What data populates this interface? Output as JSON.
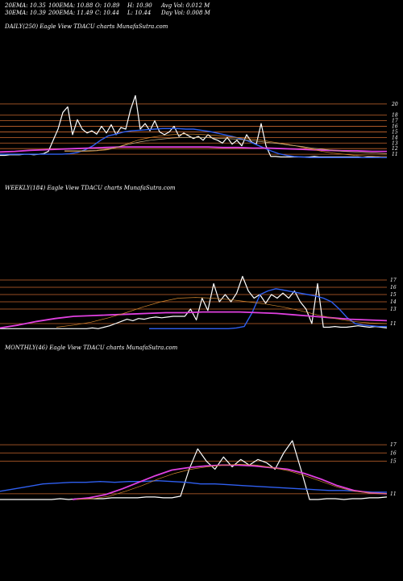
{
  "stats": {
    "ema20": "20EMA: 10.35",
    "ema100": "100EMA: 10.88",
    "open": "O: 10.89",
    "high": "H: 10.90",
    "avg_vol": "Avg Vol: 0.012  M",
    "ema30": "30EMA: 10.39",
    "ema200": "200EMA: 11.49",
    "close": "C: 10.44",
    "low": "L: 10.44",
    "day_vol": "Day Vol: 0.008  M"
  },
  "panels": {
    "daily_title": "DAILY(250) Eagle   View  TDACU charts MunafaSutra.com",
    "weekly_title": "WEEKLY(184) Eagle   View  TDACU charts MunafaSutra.com",
    "monthly_title": "MONTHLY(46) Eagle   View  TDACU charts MunafaSutra.com"
  },
  "colors": {
    "background": "#000000",
    "price": "#ffffff",
    "ema_blue": "#2f5ff0",
    "ema_magenta": "#e040e0",
    "grid": "#c8672e",
    "ma_orange": "#d4882f",
    "ma_tan": "#c8b48a"
  },
  "chart_data": [
    {
      "type": "line",
      "title": "DAILY(250)",
      "y_ticks": [
        "20",
        "18",
        "17",
        "16",
        "15",
        "14",
        "13",
        "12",
        "11"
      ],
      "ylim": [
        10,
        21
      ],
      "series": [
        {
          "values": [
            10.8,
            10.8,
            10.9,
            10.9,
            10.9,
            11.0,
            11.0,
            10.9,
            11.0,
            11.1,
            11.5,
            13.5,
            15.5,
            18.5,
            19.5,
            14.5,
            17.2,
            15.5,
            14.8,
            15.2,
            14.6,
            16.0,
            14.8,
            16.3,
            14.5,
            15.8,
            15.5,
            19.0,
            21.5,
            15.5,
            16.5,
            15.2,
            17.0,
            15.0,
            14.5,
            15.0,
            16.0,
            14.2,
            14.8,
            14.3,
            13.8,
            14.2,
            13.5,
            14.5,
            13.8,
            13.5,
            13.0,
            14.0,
            12.8,
            13.5,
            12.5,
            14.5,
            13.2,
            12.8,
            16.5,
            12.5,
            10.6,
            10.6,
            10.5,
            10.5,
            10.5,
            10.5,
            10.5,
            10.5,
            10.5,
            10.6,
            10.5,
            10.5,
            10.5,
            10.5,
            10.5,
            10.5,
            10.5,
            10.5,
            10.5,
            10.4,
            10.5,
            10.5,
            10.5,
            10.4,
            10.4
          ]
        },
        {
          "values": [
            11.0,
            11.0,
            11.0,
            11.0,
            11.0,
            11.0,
            11.0,
            11.0,
            11.0,
            11.1,
            11.3,
            11.8,
            12.5,
            13.5,
            14.3,
            14.6,
            15.0,
            15.2,
            15.3,
            15.4,
            15.5,
            15.6,
            15.6,
            15.6,
            15.5,
            15.5,
            15.3,
            15.1,
            14.8,
            14.5,
            14.2,
            13.8,
            13.4,
            12.8,
            12.2,
            11.6,
            11.1,
            10.8,
            10.6,
            10.5,
            10.4,
            10.4,
            10.4,
            10.4,
            10.4,
            10.4,
            10.4,
            10.4,
            10.4,
            10.4,
            10.4
          ]
        },
        {
          "values": [
            11.4,
            11.5,
            11.7,
            11.8,
            11.9,
            12.0,
            12.1,
            12.2,
            12.3,
            12.3,
            12.3,
            12.3,
            12.3,
            12.3,
            12.3,
            12.2,
            12.2,
            12.1,
            12.1,
            12.0,
            11.9,
            11.8,
            11.7,
            11.6,
            11.6,
            11.5,
            11.5
          ]
        },
        {
          "values": [
            11.5,
            11.5,
            11.5,
            11.6,
            11.8,
            12.3,
            13.0,
            13.6,
            14.0,
            14.3,
            14.5,
            14.6,
            14.6,
            14.5,
            14.4,
            14.2,
            14.0,
            13.8,
            13.6,
            13.3,
            13.0,
            12.7,
            12.3,
            11.9,
            11.5,
            11.2,
            11.0,
            10.8,
            10.7,
            10.6,
            10.6
          ]
        },
        {
          "values": [
            11.6,
            11.6,
            11.6,
            11.7,
            11.9,
            12.3,
            12.8,
            13.2,
            13.5,
            13.7,
            13.9,
            14.0,
            14.0,
            14.0,
            13.9,
            13.8,
            13.7,
            13.5,
            13.3,
            13.1,
            12.9,
            12.6,
            12.4,
            12.1,
            11.9,
            11.7,
            11.5,
            11.4,
            11.3,
            11.2,
            11.1
          ]
        }
      ]
    },
    {
      "type": "line",
      "title": "WEEKLY(184)",
      "y_ticks": [
        "17",
        "16",
        "15",
        "14",
        "13",
        "11"
      ],
      "ylim": [
        10,
        18
      ],
      "series": [
        {
          "values": [
            10.3,
            10.3,
            10.3,
            10.3,
            10.3,
            10.3,
            10.3,
            10.3,
            10.3,
            10.3,
            10.3,
            10.3,
            10.3,
            10.3,
            10.3,
            10.3,
            10.4,
            10.3,
            10.5,
            10.7,
            11.0,
            11.3,
            11.6,
            11.4,
            11.7,
            11.6,
            11.8,
            11.9,
            11.8,
            11.9,
            12.0,
            12.0,
            12.0,
            13.0,
            11.5,
            14.5,
            12.8,
            16.5,
            14.0,
            15.0,
            14.0,
            15.2,
            17.5,
            15.5,
            14.5,
            15.0,
            13.8,
            15.0,
            14.5,
            15.2,
            14.5,
            15.5,
            14.0,
            13.0,
            11.0,
            16.5,
            10.5,
            10.5,
            10.6,
            10.5,
            10.5,
            10.6,
            10.7,
            10.6,
            10.5,
            10.6,
            10.5,
            10.4
          ]
        },
        {
          "values": [
            10.3,
            10.3,
            10.3,
            10.3,
            10.3,
            10.3,
            10.3,
            10.3,
            10.3,
            10.3,
            10.3,
            10.4,
            10.6,
            12.5,
            15.0,
            15.5,
            15.8,
            15.6,
            15.4,
            15.2,
            15.0,
            14.8,
            14.5,
            14.0,
            13.0,
            11.8,
            11.0,
            10.8,
            10.7,
            10.6,
            10.6
          ]
        },
        {
          "values": [
            10.4,
            10.8,
            11.3,
            11.7,
            12.0,
            12.1,
            12.2,
            12.3,
            12.4,
            12.5,
            12.5,
            12.6,
            12.6,
            12.6,
            12.5,
            12.4,
            12.2,
            12.0,
            11.8,
            11.6,
            11.5,
            11.4
          ]
        },
        {
          "values": [
            10.5,
            10.8,
            11.2,
            11.8,
            12.5,
            13.3,
            14.0,
            14.5,
            14.6,
            14.5,
            14.3,
            14.0,
            13.7,
            13.3,
            12.8,
            12.2,
            11.7,
            11.3,
            11.1,
            11.0
          ]
        }
      ]
    },
    {
      "type": "line",
      "title": "MONTHLY(46)",
      "y_ticks": [
        "17",
        "16",
        "15",
        "11"
      ],
      "ylim": [
        10,
        18
      ],
      "series": [
        {
          "values": [
            10.3,
            10.3,
            10.3,
            10.3,
            10.3,
            10.3,
            10.3,
            10.4,
            10.3,
            10.4,
            10.4,
            10.4,
            10.4,
            10.5,
            10.5,
            10.5,
            10.5,
            10.6,
            10.6,
            10.5,
            10.5,
            10.7,
            14.0,
            16.5,
            15.0,
            14.0,
            15.5,
            14.3,
            15.2,
            14.5,
            15.2,
            14.8,
            14.0,
            16.0,
            17.5,
            14.0,
            10.3,
            10.3,
            10.4,
            10.4,
            10.3,
            10.4,
            10.4,
            10.5,
            10.5,
            10.6
          ]
        },
        {
          "values": [
            11.3,
            11.6,
            11.9,
            12.2,
            12.3,
            12.4,
            12.4,
            12.5,
            12.4,
            12.5,
            12.5,
            12.6,
            12.5,
            12.4,
            12.2,
            12.2,
            12.1,
            12.0,
            11.9,
            11.8,
            11.7,
            11.6,
            11.5,
            11.4,
            11.4,
            11.3,
            11.2,
            11.2
          ]
        },
        {
          "values": [
            10.3,
            10.5,
            10.9,
            11.6,
            12.4,
            13.2,
            13.9,
            14.2,
            14.4,
            14.5,
            14.5,
            14.4,
            14.2,
            14.0,
            13.5,
            12.8,
            12.0,
            11.4,
            11.1,
            11.0
          ]
        },
        {
          "values": [
            10.3,
            10.4,
            10.7,
            11.3,
            12.0,
            12.8,
            13.5,
            14.0,
            14.3,
            14.5,
            14.6,
            14.5,
            14.2,
            13.8,
            13.2,
            12.5,
            11.8,
            11.3,
            11.1,
            11.0
          ]
        }
      ]
    }
  ]
}
